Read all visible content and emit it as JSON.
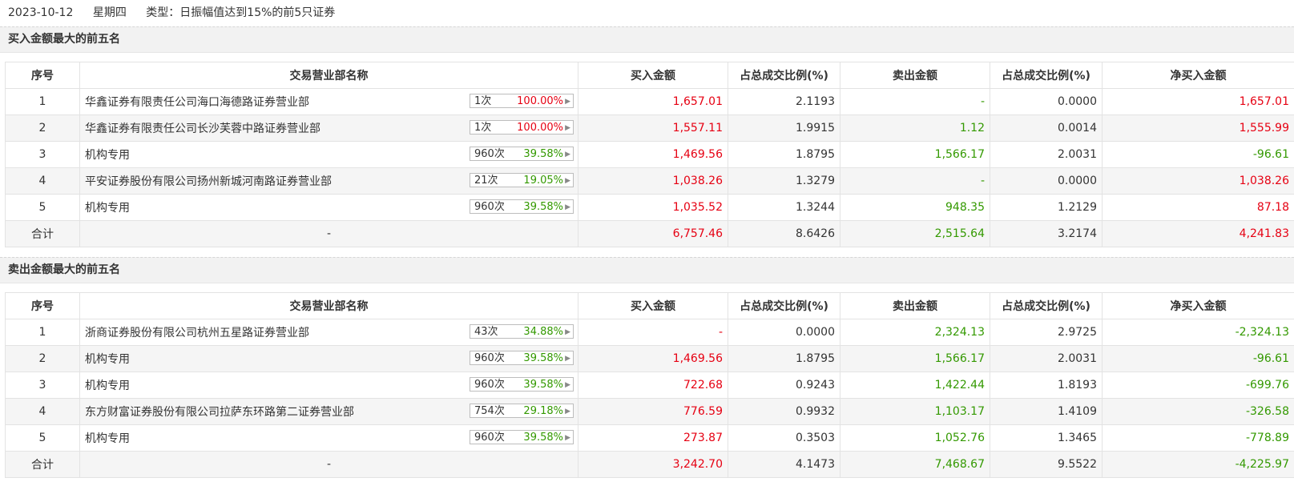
{
  "header": {
    "date": "2023-10-12",
    "weekday": "星期四",
    "type": "类型：日振幅值达到15%的前5只证券"
  },
  "columns": [
    "序号",
    "交易营业部名称",
    "买入金额",
    "占总成交比例(%)",
    "卖出金额",
    "占总成交比例(%)",
    "净买入金额"
  ],
  "buy_section": {
    "title": "买入金额最大的前五名",
    "rows": [
      {
        "idx": "1",
        "name": "华鑫证券有限责任公司海口海德路证券营业部",
        "cnt": "1次",
        "pct": "100.00%",
        "pct_color": "red",
        "buy": "1,657.01",
        "buy_ratio": "2.1193",
        "sell": "-",
        "sell_ratio": "0.0000",
        "net": "1,657.01",
        "net_color": "red"
      },
      {
        "idx": "2",
        "name": "华鑫证券有限责任公司长沙芙蓉中路证券营业部",
        "cnt": "1次",
        "pct": "100.00%",
        "pct_color": "red",
        "buy": "1,557.11",
        "buy_ratio": "1.9915",
        "sell": "1.12",
        "sell_ratio": "0.0014",
        "net": "1,555.99",
        "net_color": "red"
      },
      {
        "idx": "3",
        "name": "机构专用",
        "cnt": "960次",
        "pct": "39.58%",
        "pct_color": "green",
        "buy": "1,469.56",
        "buy_ratio": "1.8795",
        "sell": "1,566.17",
        "sell_ratio": "2.0031",
        "net": "-96.61",
        "net_color": "green"
      },
      {
        "idx": "4",
        "name": "平安证券股份有限公司扬州新城河南路证券营业部",
        "cnt": "21次",
        "pct": "19.05%",
        "pct_color": "green",
        "buy": "1,038.26",
        "buy_ratio": "1.3279",
        "sell": "-",
        "sell_ratio": "0.0000",
        "net": "1,038.26",
        "net_color": "red"
      },
      {
        "idx": "5",
        "name": "机构专用",
        "cnt": "960次",
        "pct": "39.58%",
        "pct_color": "green",
        "buy": "1,035.52",
        "buy_ratio": "1.3244",
        "sell": "948.35",
        "sell_ratio": "1.2129",
        "net": "87.18",
        "net_color": "red"
      }
    ],
    "total": {
      "label": "合计",
      "name": "-",
      "buy": "6,757.46",
      "buy_ratio": "8.6426",
      "sell": "2,515.64",
      "sell_ratio": "3.2174",
      "net": "4,241.83",
      "net_color": "red"
    }
  },
  "sell_section": {
    "title": "卖出金额最大的前五名",
    "rows": [
      {
        "idx": "1",
        "name": "浙商证券股份有限公司杭州五星路证券营业部",
        "cnt": "43次",
        "pct": "34.88%",
        "pct_color": "green",
        "buy": "-",
        "buy_ratio": "0.0000",
        "sell": "2,324.13",
        "sell_ratio": "2.9725",
        "net": "-2,324.13",
        "net_color": "green"
      },
      {
        "idx": "2",
        "name": "机构专用",
        "cnt": "960次",
        "pct": "39.58%",
        "pct_color": "green",
        "buy": "1,469.56",
        "buy_ratio": "1.8795",
        "sell": "1,566.17",
        "sell_ratio": "2.0031",
        "net": "-96.61",
        "net_color": "green"
      },
      {
        "idx": "3",
        "name": "机构专用",
        "cnt": "960次",
        "pct": "39.58%",
        "pct_color": "green",
        "buy": "722.68",
        "buy_ratio": "0.9243",
        "sell": "1,422.44",
        "sell_ratio": "1.8193",
        "net": "-699.76",
        "net_color": "green"
      },
      {
        "idx": "4",
        "name": "东方财富证券股份有限公司拉萨东环路第二证券营业部",
        "cnt": "754次",
        "pct": "29.18%",
        "pct_color": "green",
        "buy": "776.59",
        "buy_ratio": "0.9932",
        "sell": "1,103.17",
        "sell_ratio": "1.4109",
        "net": "-326.58",
        "net_color": "green"
      },
      {
        "idx": "5",
        "name": "机构专用",
        "cnt": "960次",
        "pct": "39.58%",
        "pct_color": "green",
        "buy": "273.87",
        "buy_ratio": "0.3503",
        "sell": "1,052.76",
        "sell_ratio": "1.3465",
        "net": "-778.89",
        "net_color": "green"
      }
    ],
    "total": {
      "label": "合计",
      "name": "-",
      "buy": "3,242.70",
      "buy_ratio": "4.1473",
      "sell": "7,468.67",
      "sell_ratio": "9.5522",
      "net": "-4,225.97",
      "net_color": "green"
    }
  },
  "icons": {
    "badge_arrow": "caret-right-icon"
  }
}
